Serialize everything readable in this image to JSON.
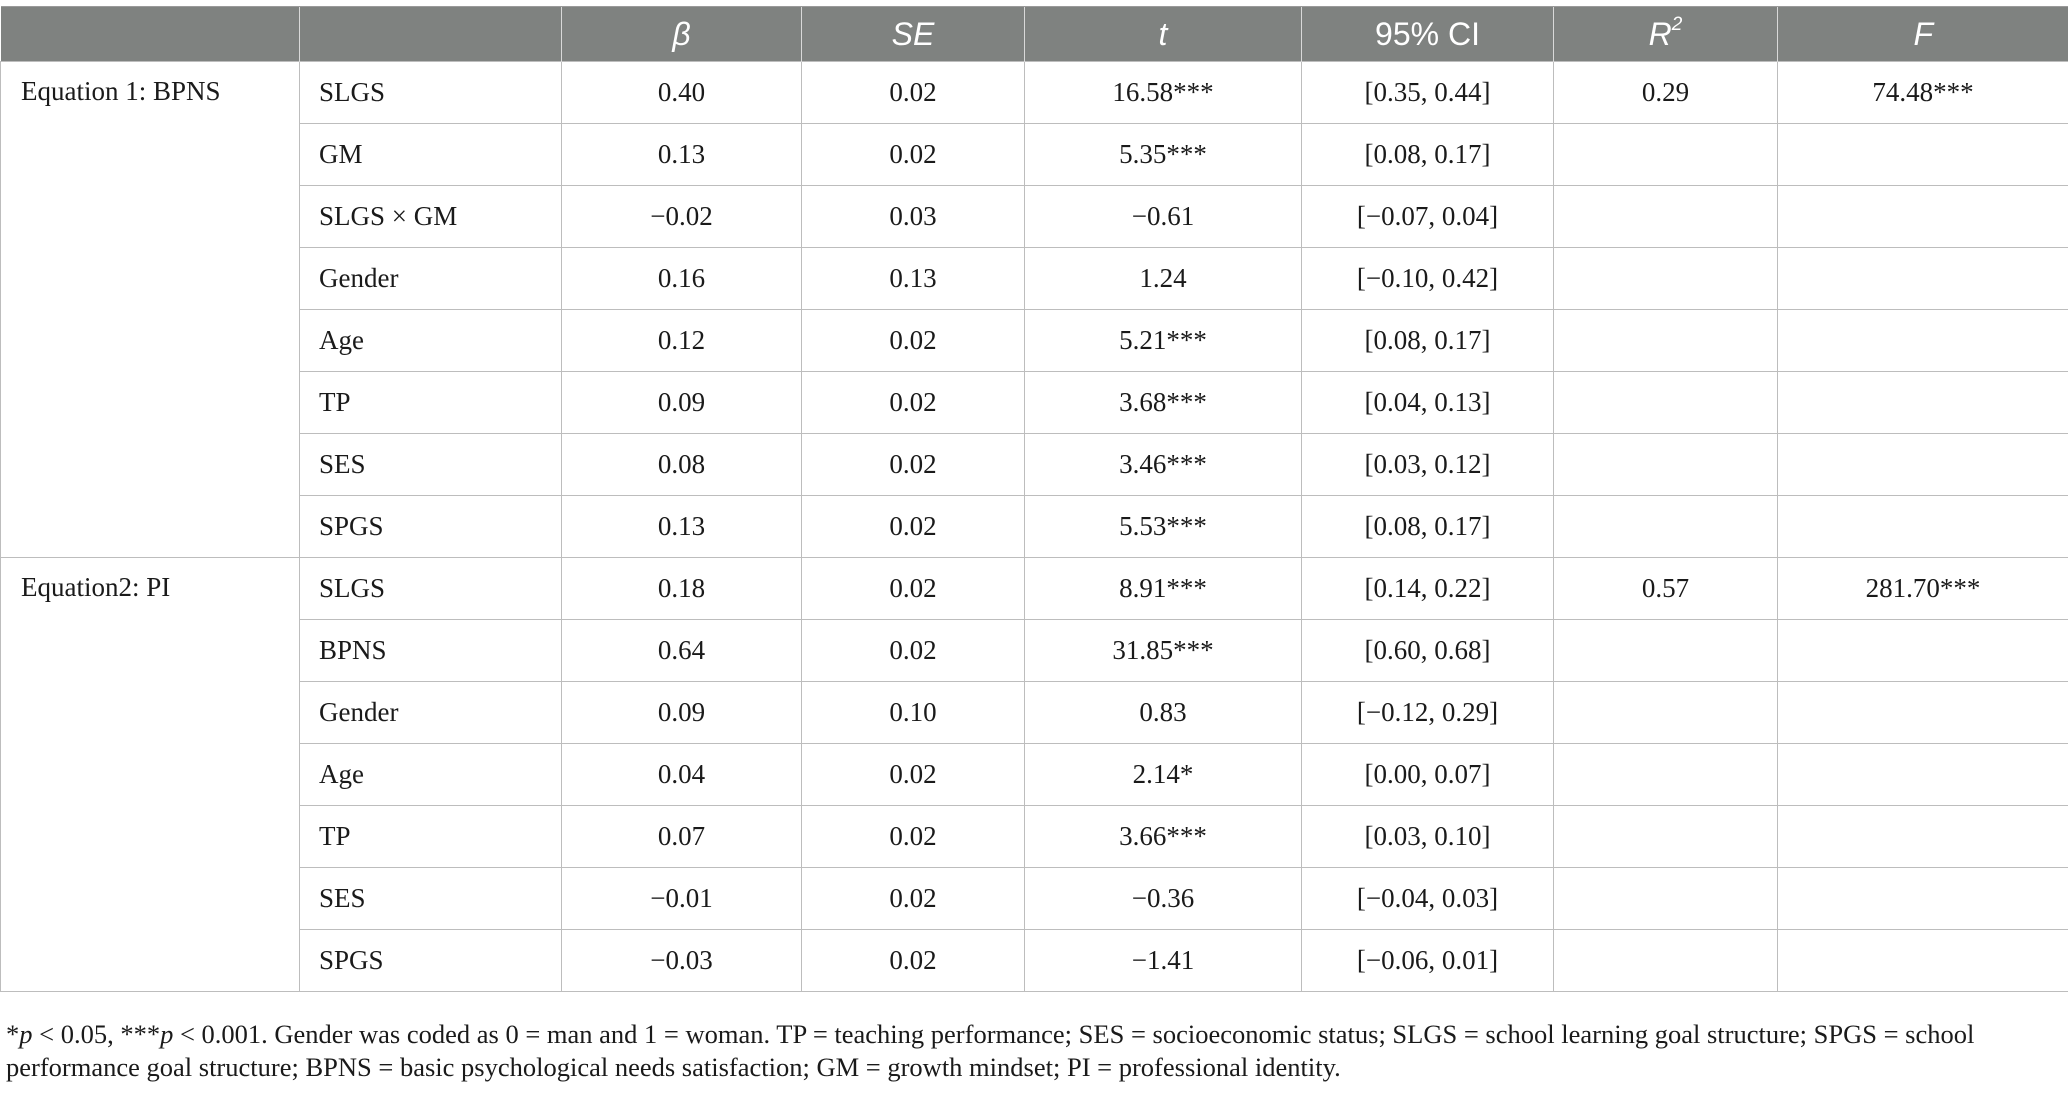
{
  "table": {
    "headers": [
      "",
      "",
      "β",
      "SE",
      "t",
      "95% CI",
      "R",
      "F"
    ],
    "r2_superscript": "2",
    "groups": [
      {
        "equation": "Equation 1: BPNS",
        "r2": "0.29",
        "f": "74.48***",
        "rows": [
          {
            "var": "SLGS",
            "beta": "0.40",
            "se": "0.02",
            "t": "16.58***",
            "ci": "[0.35, 0.44]"
          },
          {
            "var": "GM",
            "beta": "0.13",
            "se": "0.02",
            "t": "5.35***",
            "ci": "[0.08, 0.17]"
          },
          {
            "var": "SLGS × GM",
            "beta": "−0.02",
            "se": "0.03",
            "t": "−0.61",
            "ci": "[−0.07, 0.04]"
          },
          {
            "var": "Gender",
            "beta": "0.16",
            "se": "0.13",
            "t": "1.24",
            "ci": "[−0.10, 0.42]"
          },
          {
            "var": "Age",
            "beta": "0.12",
            "se": "0.02",
            "t": "5.21***",
            "ci": "[0.08, 0.17]"
          },
          {
            "var": "TP",
            "beta": "0.09",
            "se": "0.02",
            "t": "3.68***",
            "ci": "[0.04, 0.13]"
          },
          {
            "var": "SES",
            "beta": "0.08",
            "se": "0.02",
            "t": "3.46***",
            "ci": "[0.03, 0.12]"
          },
          {
            "var": "SPGS",
            "beta": "0.13",
            "se": "0.02",
            "t": "5.53***",
            "ci": "[0.08, 0.17]"
          }
        ]
      },
      {
        "equation": "Equation2: PI",
        "r2": "0.57",
        "f": "281.70***",
        "rows": [
          {
            "var": "SLGS",
            "beta": "0.18",
            "se": "0.02",
            "t": "8.91***",
            "ci": "[0.14, 0.22]"
          },
          {
            "var": "BPNS",
            "beta": "0.64",
            "se": "0.02",
            "t": "31.85***",
            "ci": "[0.60, 0.68]"
          },
          {
            "var": "Gender",
            "beta": "0.09",
            "se": "0.10",
            "t": "0.83",
            "ci": "[−0.12, 0.29]"
          },
          {
            "var": "Age",
            "beta": "0.04",
            "se": "0.02",
            "t": "2.14*",
            "ci": "[0.00, 0.07]"
          },
          {
            "var": "TP",
            "beta": "0.07",
            "se": "0.02",
            "t": "3.66***",
            "ci": "[0.03, 0.10]"
          },
          {
            "var": "SES",
            "beta": "−0.01",
            "se": "0.02",
            "t": "−0.36",
            "ci": "[−0.04, 0.03]"
          },
          {
            "var": "SPGS",
            "beta": "−0.03",
            "se": "0.02",
            "t": "−1.41",
            "ci": "[−0.06, 0.01]"
          }
        ]
      }
    ]
  },
  "note": {
    "star1_prefix": "*",
    "p1": "p",
    "star1_text": " < 0.05, ***",
    "p2": "p",
    "rest": " < 0.001. Gender was coded as 0 = man and 1 = woman. TP = teaching performance; SES = socioeconomic status; SLGS = school learning goal structure; SPGS = school performance goal structure; BPNS = basic psychological needs satisfaction; GM = growth mindset; PI = professional identity."
  },
  "colors": {
    "header_bg": "#7f8280",
    "header_text": "#ffffff",
    "grid": "#bdbdbd",
    "text": "#1a1a1a"
  }
}
